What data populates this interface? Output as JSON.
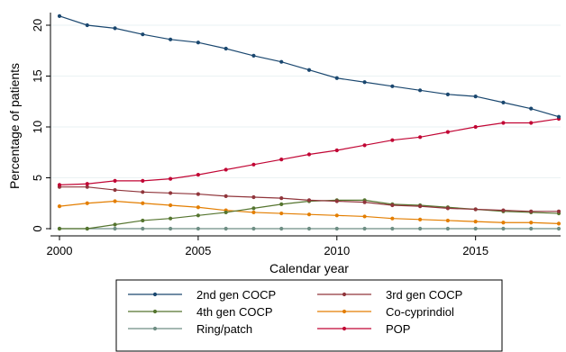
{
  "chart_data": {
    "type": "line",
    "xlabel": "Calendar year",
    "ylabel": "Percentage of patients",
    "xlim": [
      2000,
      2018
    ],
    "ylim": [
      0,
      21
    ],
    "xticks": [
      2000,
      2005,
      2010,
      2015
    ],
    "yticks": [
      0,
      5,
      10,
      15,
      20
    ],
    "x": [
      2000,
      2001,
      2002,
      2003,
      2004,
      2005,
      2006,
      2007,
      2008,
      2009,
      2010,
      2011,
      2012,
      2013,
      2014,
      2015,
      2016,
      2017,
      2018
    ],
    "grid": true,
    "legend_position": "bottom",
    "series": [
      {
        "name": "2nd gen COCP",
        "color": "#1a476f",
        "values": [
          20.9,
          20.0,
          19.7,
          19.1,
          18.6,
          18.3,
          17.7,
          17.0,
          16.4,
          15.6,
          14.8,
          14.4,
          14.0,
          13.6,
          13.2,
          13.0,
          12.4,
          11.8,
          11.0
        ]
      },
      {
        "name": "3rd gen COCP",
        "color": "#90353b",
        "values": [
          4.1,
          4.1,
          3.8,
          3.6,
          3.5,
          3.4,
          3.2,
          3.1,
          3.0,
          2.8,
          2.7,
          2.6,
          2.3,
          2.2,
          2.0,
          1.9,
          1.8,
          1.7,
          1.7
        ]
      },
      {
        "name": "4th gen COCP",
        "color": "#55752f",
        "values": [
          0.0,
          0.0,
          0.4,
          0.8,
          1.0,
          1.3,
          1.6,
          2.0,
          2.4,
          2.7,
          2.8,
          2.8,
          2.4,
          2.3,
          2.1,
          1.9,
          1.7,
          1.6,
          1.5
        ]
      },
      {
        "name": "Co-cyprindiol",
        "color": "#e37e00",
        "values": [
          2.2,
          2.5,
          2.7,
          2.5,
          2.3,
          2.1,
          1.8,
          1.6,
          1.5,
          1.4,
          1.3,
          1.2,
          1.0,
          0.9,
          0.8,
          0.7,
          0.6,
          0.6,
          0.5
        ]
      },
      {
        "name": "Ring/patch",
        "color": "#6e8e84",
        "values": [
          0.0,
          0.0,
          0.0,
          0.0,
          0.0,
          0.0,
          0.0,
          0.0,
          0.0,
          0.0,
          0.0,
          0.0,
          0.0,
          0.0,
          0.0,
          0.0,
          0.0,
          0.0,
          0.0
        ]
      },
      {
        "name": "POP",
        "color": "#c10534",
        "values": [
          4.3,
          4.4,
          4.7,
          4.7,
          4.9,
          5.3,
          5.8,
          6.3,
          6.8,
          7.3,
          7.7,
          8.2,
          8.7,
          9.0,
          9.5,
          10.0,
          10.4,
          10.4,
          10.8
        ]
      }
    ]
  }
}
